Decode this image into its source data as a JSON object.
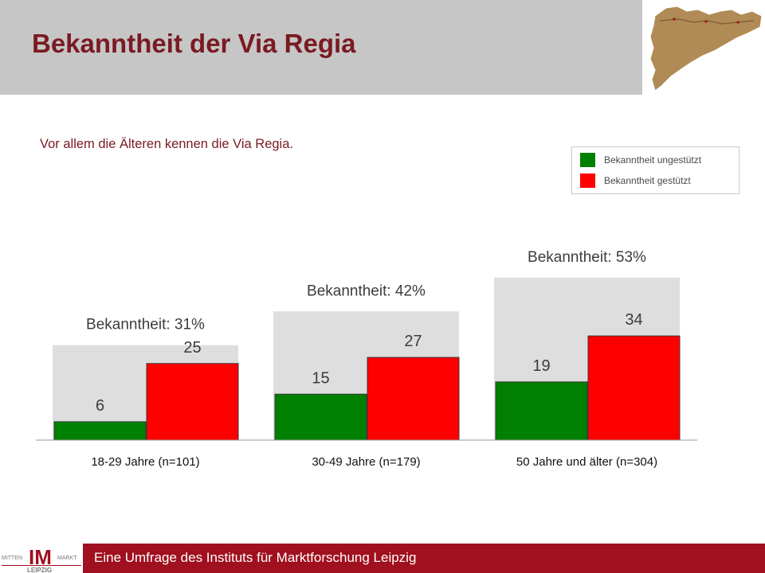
{
  "header": {
    "title": "Bekanntheit der Via Regia"
  },
  "subtitle": "Vor allem die Älteren kennen die Via Regia.",
  "legend": [
    {
      "label": "Bekanntheit ungestützt",
      "color": "#008000"
    },
    {
      "label": "Bekanntheit gestützt",
      "color": "#ff0000"
    }
  ],
  "footer": {
    "text": "Eine Umfrage des Instituts für Marktforschung Leipzig"
  },
  "logo": {
    "left": "MITTEN",
    "mark": "IM",
    "right": "MARKT",
    "bottom": "LEIPZIG"
  },
  "chart_data": {
    "type": "bar",
    "categories": [
      "18-29 Jahre (n=101)",
      "30-49 Jahre (n=179)",
      "50 Jahre und älter (n=304)"
    ],
    "series": [
      {
        "name": "Bekanntheit ungestützt",
        "values": [
          6,
          15,
          19
        ],
        "color": "#008000"
      },
      {
        "name": "Bekanntheit gestützt",
        "values": [
          25,
          27,
          34
        ],
        "color": "#ff0000"
      }
    ],
    "totals": {
      "values": [
        31,
        42,
        53
      ],
      "labels": [
        "Bekanntheit: 31%",
        "Bekanntheit: 42%",
        "Bekanntheit: 53%"
      ],
      "color": "#dedede"
    },
    "ylim": [
      0,
      55
    ],
    "grid": false,
    "legend_position": "top-right"
  }
}
